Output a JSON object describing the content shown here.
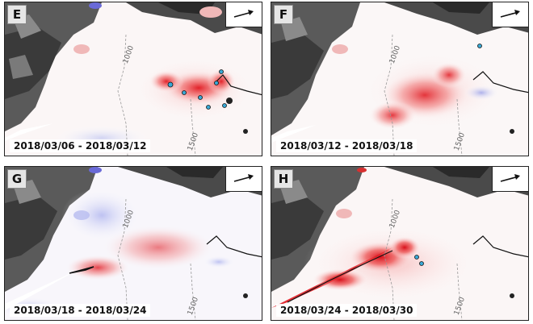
{
  "panels": [
    {
      "letter": "E",
      "dates": "2018/03/06 - 2018/03/12",
      "contour_a": "1000",
      "contour_b": "1500"
    },
    {
      "letter": "F",
      "dates": "2018/03/12 - 2018/03/18",
      "contour_a": "1000",
      "contour_b": "1500"
    },
    {
      "letter": "G",
      "dates": "2018/03/18 - 2018/03/24",
      "contour_a": "1000",
      "contour_b": "1500"
    },
    {
      "letter": "H",
      "dates": "2018/03/24 - 2018/03/30",
      "contour_a": "1000",
      "contour_b": "1500"
    }
  ],
  "colors": {
    "positive": "#e8202a",
    "negative": "#6b73d8",
    "terrain": "#4a4a4a",
    "marker": "#39a9d6"
  }
}
